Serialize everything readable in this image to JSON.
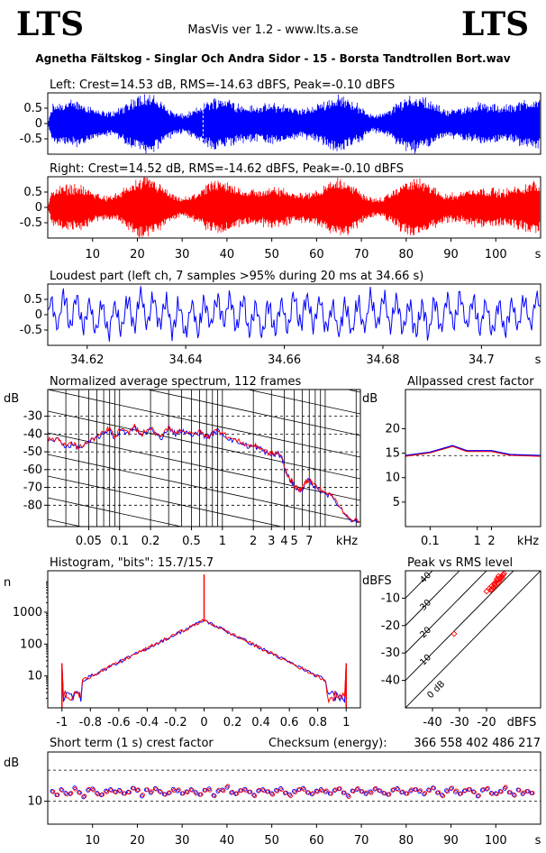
{
  "header": {
    "logo_left": "LTS",
    "logo_right": "LTS",
    "app_title": "MasVis ver 1.2 - www.lts.a.se",
    "file_title": "Agnetha Fältskog - Singlar Och Andra Sidor - 15 - Borsta Tandtrollen Bort.wav"
  },
  "colors": {
    "left": "#0000ff",
    "right": "#ff0000",
    "axis": "#000000",
    "dash": "#000000"
  },
  "chart_data": [
    {
      "id": "left-waveform",
      "type": "line",
      "title": "Left: Crest=14.53 dB, RMS=-14.63 dBFS, Peak=-0.10 dBFS",
      "ylim": [
        -1,
        1
      ],
      "yticks": [
        0.5,
        0,
        -0.5
      ],
      "ytick_labels": [
        "0.5",
        "0",
        "-0.5"
      ],
      "xlim": [
        0,
        110
      ],
      "crest_db": 14.53,
      "rms_dbfs": -14.63,
      "peak_dbfs": -0.1,
      "marker_s": 34.66
    },
    {
      "id": "right-waveform",
      "type": "line",
      "title": "Right: Crest=14.52 dB, RMS=-14.62 dBFS, Peak=-0.10 dBFS",
      "ylim": [
        -1,
        1
      ],
      "yticks": [
        0.5,
        0,
        -0.5
      ],
      "ytick_labels": [
        "0.5",
        "0",
        "-0.5"
      ],
      "xlim": [
        0,
        110
      ],
      "xticks": [
        10,
        20,
        30,
        40,
        50,
        60,
        70,
        80,
        90,
        100
      ],
      "xtick_labels": [
        "10",
        "20",
        "30",
        "40",
        "50",
        "60",
        "70",
        "80",
        "90",
        "100"
      ],
      "xunit": "s",
      "crest_db": 14.52,
      "rms_dbfs": -14.62,
      "peak_dbfs": -0.1
    },
    {
      "id": "loudest-part",
      "type": "line",
      "title": "Loudest part (left  ch, 7 samples >95% during 20 ms at 34.66 s)",
      "xlim": [
        34.612,
        34.712
      ],
      "xticks": [
        34.62,
        34.64,
        34.66,
        34.68,
        34.7
      ],
      "xtick_labels": [
        "34.62",
        "34.64",
        "34.66",
        "34.68",
        "34.7"
      ],
      "xunit": "s",
      "ylim": [
        -1,
        1
      ],
      "yticks": [
        0.5,
        0,
        -0.5
      ],
      "ytick_labels": [
        "0.5",
        "0",
        "-0.5"
      ]
    },
    {
      "id": "spectrum",
      "type": "line",
      "title": "Normalized average spectrum, 112 frames",
      "ylabel": "dB",
      "yticks": [
        -30,
        -40,
        -50,
        -60,
        -70,
        -80
      ],
      "ytick_labels": [
        "-30",
        "-40",
        "-50",
        "-60",
        "-70",
        "-80"
      ],
      "ylim": [
        -92,
        -15
      ],
      "xscale": "log",
      "xlim": [
        0.02,
        22
      ],
      "xticks": [
        0.05,
        0.1,
        0.2,
        0.5,
        1,
        2,
        3,
        4,
        5,
        7
      ],
      "xtick_labels": [
        "0.05",
        "0.1",
        "0.2",
        "0.5",
        "1",
        "2",
        "3",
        "4",
        "5",
        "7"
      ],
      "xunit": "kHz",
      "points": [
        [
          0.02,
          -44
        ],
        [
          0.025,
          -43
        ],
        [
          0.03,
          -47
        ],
        [
          0.035,
          -46
        ],
        [
          0.04,
          -48
        ],
        [
          0.05,
          -45
        ],
        [
          0.06,
          -42
        ],
        [
          0.07,
          -40
        ],
        [
          0.08,
          -37
        ],
        [
          0.09,
          -43
        ],
        [
          0.1,
          -38
        ],
        [
          0.12,
          -40
        ],
        [
          0.14,
          -36
        ],
        [
          0.16,
          -41
        ],
        [
          0.2,
          -37
        ],
        [
          0.25,
          -43
        ],
        [
          0.3,
          -36
        ],
        [
          0.35,
          -40
        ],
        [
          0.4,
          -38
        ],
        [
          0.5,
          -41
        ],
        [
          0.6,
          -39
        ],
        [
          0.7,
          -42
        ],
        [
          0.8,
          -40
        ],
        [
          0.9,
          -38
        ],
        [
          1.0,
          -40
        ],
        [
          1.2,
          -43
        ],
        [
          1.5,
          -45
        ],
        [
          1.8,
          -47
        ],
        [
          2.0,
          -47
        ],
        [
          2.3,
          -48
        ],
        [
          2.6,
          -50
        ],
        [
          3.0,
          -52
        ],
        [
          3.5,
          -51
        ],
        [
          3.8,
          -54
        ],
        [
          4.2,
          -62
        ],
        [
          4.6,
          -66
        ],
        [
          5.0,
          -69
        ],
        [
          5.5,
          -72
        ],
        [
          6.0,
          -71
        ],
        [
          6.5,
          -67
        ],
        [
          7.0,
          -66
        ],
        [
          7.5,
          -68
        ],
        [
          8.5,
          -71
        ],
        [
          10,
          -73
        ],
        [
          12,
          -76
        ],
        [
          15,
          -84
        ],
        [
          18,
          -88
        ],
        [
          22,
          -90
        ]
      ]
    },
    {
      "id": "allpassed-crest",
      "type": "line",
      "title": "Allpassed crest factor",
      "ylabel": "dB",
      "yticks": [
        20,
        15,
        10,
        5
      ],
      "ytick_labels": [
        "20",
        "15",
        "10",
        "5"
      ],
      "ylim": [
        0,
        28
      ],
      "xscale": "log",
      "xlim": [
        0.03,
        22
      ],
      "xticks": [
        0.1,
        1,
        2
      ],
      "xtick_labels": [
        "0.1",
        "1",
        "2"
      ],
      "xunit": "kHz",
      "reference_db": 14.5,
      "points": [
        [
          0.03,
          14.5
        ],
        [
          0.1,
          15.2
        ],
        [
          0.3,
          16.5
        ],
        [
          0.6,
          15.5
        ],
        [
          2,
          15.5
        ],
        [
          5,
          14.7
        ],
        [
          22,
          14.5
        ]
      ]
    },
    {
      "id": "histogram",
      "type": "line",
      "title": "Histogram, \"bits\": 15.7/15.7",
      "ylabel": "n",
      "yscale": "log",
      "yticks": [
        1000,
        100,
        10
      ],
      "ytick_labels": [
        "1000",
        "100",
        "10"
      ],
      "ylim": [
        1,
        20000
      ],
      "xlim": [
        -1.1,
        1.1
      ],
      "xticks": [
        -1,
        -0.8,
        -0.6,
        -0.4,
        -0.2,
        0,
        0.2,
        0.4,
        0.6,
        0.8,
        1
      ],
      "xtick_labels": [
        "-1",
        "-0.8",
        "-0.6",
        "-0.4",
        "-0.2",
        "0",
        "0.2",
        "0.4",
        "0.6",
        "0.8",
        "1"
      ],
      "bits_left": 15.7,
      "bits_right": 15.7
    },
    {
      "id": "peak-vs-rms",
      "type": "scatter",
      "title": "Peak vs RMS level",
      "ylabel": "dBFS",
      "yticks": [
        -10,
        -20,
        -30,
        -40
      ],
      "ytick_labels": [
        "-10",
        "-20",
        "-30",
        "-40"
      ],
      "ylim": [
        -50,
        0
      ],
      "xlim": [
        -50,
        0
      ],
      "xticks": [
        -40,
        -30,
        -20
      ],
      "xtick_labels": [
        "-40",
        "-30",
        "-20"
      ],
      "xunit": "dBFS",
      "diagonal_labels": [
        "40",
        "30",
        "20",
        "10",
        "0 dB"
      ],
      "diagonal_offsets_db": [
        40,
        30,
        20,
        10,
        0
      ],
      "points": [
        [
          -32,
          -23
        ],
        [
          -20,
          -7.5
        ],
        [
          -19,
          -6.5
        ],
        [
          -18,
          -5.5
        ],
        [
          -17,
          -5
        ],
        [
          -16.5,
          -4
        ],
        [
          -16,
          -3.5
        ],
        [
          -15.5,
          -3
        ],
        [
          -15,
          -2.5
        ],
        [
          -14.5,
          -2
        ],
        [
          -14,
          -1.5
        ],
        [
          -18.5,
          -7
        ],
        [
          -17.5,
          -6
        ],
        [
          -16.8,
          -5.5
        ],
        [
          -15.8,
          -4.5
        ],
        [
          -15.2,
          -4
        ],
        [
          -14.8,
          -3
        ],
        [
          -14.2,
          -2.5
        ],
        [
          -13.8,
          -1.5
        ],
        [
          -13.5,
          -1
        ],
        [
          -17,
          -4.5
        ],
        [
          -16.2,
          -3
        ],
        [
          -15.6,
          -2
        ],
        [
          -18,
          -6.8
        ]
      ]
    },
    {
      "id": "short-term-crest",
      "type": "scatter",
      "title": "Short term (1 s) crest factor",
      "ylabel": "dB",
      "yscale": "log",
      "yticks": [
        10
      ],
      "ytick_labels": [
        "10"
      ],
      "ylim": [
        6,
        30
      ],
      "dashed_lines_db": [
        20,
        10
      ],
      "xlim": [
        0,
        110
      ],
      "xticks": [
        10,
        20,
        30,
        40,
        50,
        60,
        70,
        80,
        90,
        100
      ],
      "xtick_labels": [
        "10",
        "20",
        "30",
        "40",
        "50",
        "60",
        "70",
        "80",
        "90",
        "100"
      ],
      "xunit": "s",
      "values": [
        12.5,
        11.5,
        13.0,
        12.0,
        11.8,
        13.5,
        12.2,
        11.0,
        12.8,
        13.2,
        12.0,
        11.5,
        12.6,
        13.0,
        12.4,
        12.8,
        11.9,
        12.3,
        13.4,
        12.7,
        11.2,
        12.9,
        12.1,
        13.3,
        12.5,
        11.7,
        12.0,
        13.1,
        12.6,
        11.9,
        12.4,
        13.0,
        12.2,
        11.6,
        12.8,
        13.2,
        11.4,
        12.5,
        12.9,
        13.6,
        12.1,
        11.8,
        12.7,
        13.1,
        12.3,
        11.5,
        12.6,
        13.0,
        12.4,
        11.9,
        12.8,
        13.3,
        12.0,
        11.6,
        12.5,
        12.9,
        13.4,
        12.2,
        11.7,
        12.6,
        13.0,
        12.3,
        11.9,
        12.7,
        13.2,
        12.1,
        11.4,
        12.6,
        13.0,
        12.5,
        11.8,
        12.4,
        13.1,
        12.7,
        12.0,
        11.6,
        12.8,
        13.3,
        12.2,
        11.9,
        12.6,
        13.0,
        12.4,
        11.7,
        12.9,
        13.5,
        12.1,
        11.5,
        12.7,
        13.2,
        12.3,
        11.8,
        12.6,
        13.0,
        12.4,
        11.2,
        12.8,
        13.1,
        12.0,
        11.9,
        12.5,
        13.3,
        12.2,
        11.6,
        12.9,
        11.8,
        12.5,
        12.0
      ],
      "checksum_label": "Checksum (energy):",
      "checksum_value": "366 558 402 486 217"
    }
  ]
}
